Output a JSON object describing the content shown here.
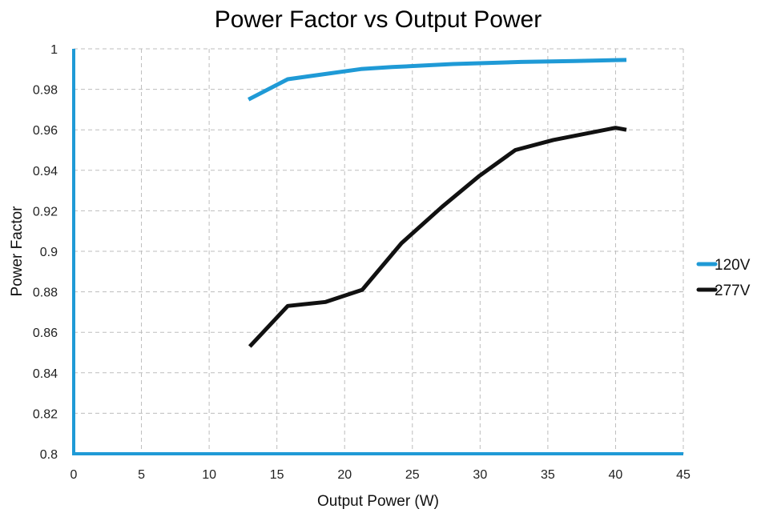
{
  "chart_data": {
    "type": "line",
    "title": "Power Factor vs Output Power",
    "xlabel": "Output Power (W)",
    "ylabel": "Power Factor",
    "xlim": [
      0,
      45
    ],
    "ylim": [
      0.8,
      1.0
    ],
    "x_ticks": [
      "0",
      "5",
      "10",
      "15",
      "20",
      "25",
      "30",
      "35",
      "40",
      "45"
    ],
    "y_ticks": [
      "0.8",
      "0.82",
      "0.84",
      "0.86",
      "0.88",
      "0.9",
      "0.92",
      "0.94",
      "0.96",
      "0.98",
      "1"
    ],
    "grid": true,
    "legend_position": "right",
    "axis_color": "#1f9ad6",
    "series": [
      {
        "name": "120V",
        "color": "#1f9ad6",
        "points": [
          [
            12.9,
            0.975
          ],
          [
            15.8,
            0.985
          ],
          [
            18.5,
            0.9875
          ],
          [
            21.2,
            0.99
          ],
          [
            23.5,
            0.991
          ],
          [
            28,
            0.9925
          ],
          [
            33,
            0.9935
          ],
          [
            37,
            0.994
          ],
          [
            40.8,
            0.9945
          ]
        ]
      },
      {
        "name": "277V",
        "color": "#111111",
        "points": [
          [
            13.0,
            0.853
          ],
          [
            15.8,
            0.873
          ],
          [
            18.6,
            0.875
          ],
          [
            21.3,
            0.881
          ],
          [
            24.2,
            0.904
          ],
          [
            27.2,
            0.922
          ],
          [
            29.9,
            0.937
          ],
          [
            32.6,
            0.95
          ],
          [
            35.4,
            0.955
          ],
          [
            40.0,
            0.961
          ],
          [
            40.8,
            0.96
          ]
        ]
      }
    ]
  }
}
